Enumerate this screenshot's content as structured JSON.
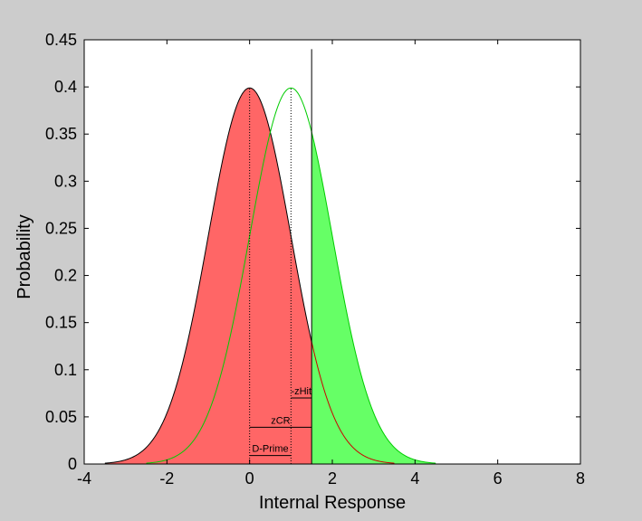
{
  "window": {
    "background": "#cccccc"
  },
  "chart_data": {
    "type": "area",
    "title": "",
    "xlabel": "Internal Response",
    "ylabel": "Probability",
    "xlim": [
      -4,
      8
    ],
    "ylim": [
      0,
      0.45
    ],
    "xticks": [
      -4,
      -2,
      0,
      2,
      4,
      6,
      8
    ],
    "yticks": [
      0,
      0.05,
      0.1,
      0.15,
      0.2,
      0.25,
      0.3,
      0.35,
      0.4,
      0.45
    ],
    "xtick_labels": [
      "-4",
      "-2",
      "0",
      "2",
      "4",
      "6",
      "8"
    ],
    "ytick_labels": [
      "0",
      "0.05",
      "0.1",
      "0.15",
      "0.2",
      "0.25",
      "0.3",
      "0.35",
      "0.4",
      "0.45"
    ],
    "grid": false,
    "series": [
      {
        "mean": 0,
        "sd": 1,
        "x_range": [
          -3.5,
          3.5
        ],
        "fill_to": 1.5,
        "color": "#ff6666",
        "line_color": "#000000",
        "tail_line_color": "#cc0000"
      },
      {
        "mean": 1,
        "sd": 1,
        "x_range": [
          -2.5,
          4.5
        ],
        "fill_from": 1.5,
        "color": "#66ff66",
        "line_color": "#00cc00"
      }
    ],
    "criterion": {
      "x": 1.5,
      "y_top": 0.44,
      "color": "#000000"
    },
    "mean_markers": [
      {
        "x": 0,
        "y_top": 0.4
      },
      {
        "x": 1,
        "y_top": 0.4
      }
    ],
    "annotations": [
      {
        "label": "-zHit",
        "x1": 1,
        "x2": 1.5,
        "y": 0.07
      },
      {
        "label": "zCR",
        "x1": 0,
        "x2": 1.5,
        "y": 0.039
      },
      {
        "label": "D-Prime",
        "x1": 0,
        "x2": 1,
        "y": 0.009
      }
    ]
  }
}
